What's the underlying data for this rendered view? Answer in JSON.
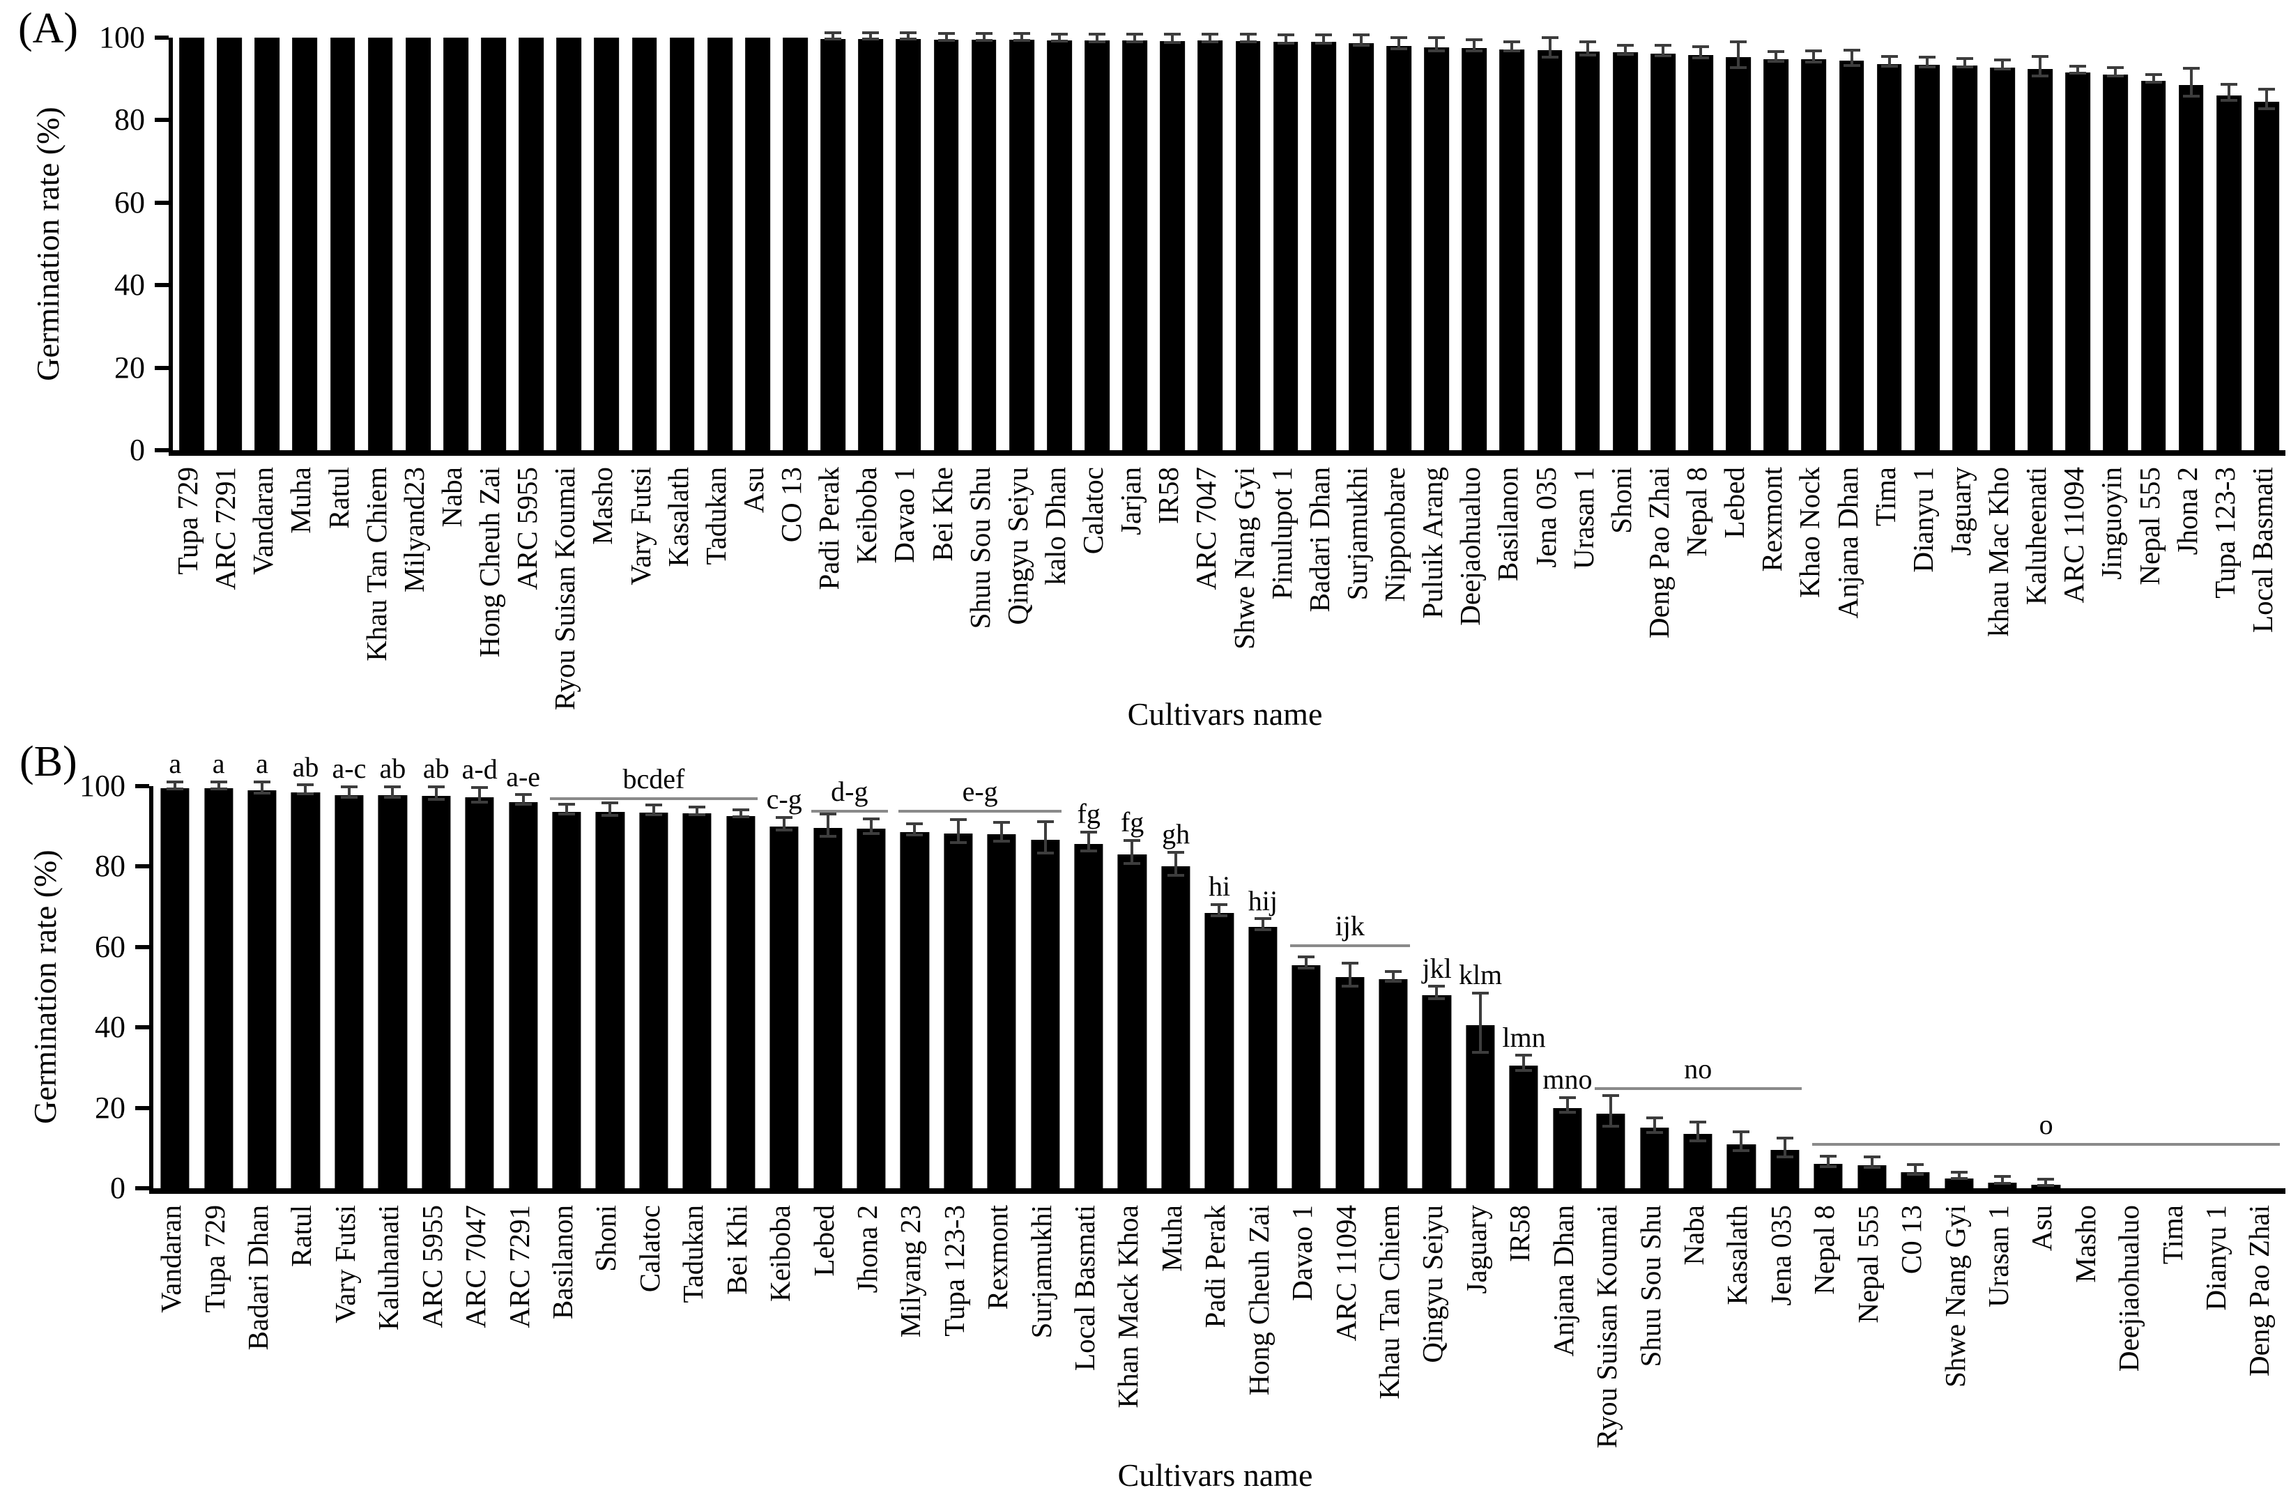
{
  "chart_data": [
    {
      "type": "bar",
      "panel_label": "(A)",
      "ylabel": "Germination rate (%)",
      "xlabel": "Cultivars name",
      "ylim": [
        0,
        100
      ],
      "yticks": [
        0,
        20,
        40,
        60,
        80,
        100
      ],
      "bar_color": "#000000",
      "error_bar_color": "#3d3d3d",
      "grid": "off",
      "categories": [
        "Tupa 729",
        "ARC 7291",
        "Vandaran",
        "Muha",
        "Ratul",
        "Khau Tan Chiem",
        "Milyand23",
        "Naba",
        "Hong Cheuh Zai",
        "ARC 5955",
        "Ryou Suisan Koumai",
        "Masho",
        "Vary Futsi",
        "Kasalath",
        "Tadukan",
        "Asu",
        "CO 13",
        "Padi Perak",
        "Keiboba",
        "Davao 1",
        "Bei Khe",
        "Shuu Sou Shu",
        "Qingyu Seiyu",
        "kalo Dhan",
        "Calatoc",
        "Jarjan",
        "IR58",
        "ARC 7047",
        "Shwe Nang Gyi",
        "Pinulupot 1",
        "Badari Dhan",
        "Surjamukhi",
        "Nipponbare",
        "Puluik Arang",
        "Deejaohualuo",
        "Basilanon",
        "Jena 035",
        "Urasan 1",
        "Shoni",
        "Deng Pao Zhai",
        "Nepal 8",
        "Lebed",
        "Rexmont",
        "Khao Nock",
        "Anjana Dhan",
        "Tima",
        "Dianyu 1",
        "Jaguary",
        "khau Mac Kho",
        "Kaluheenati",
        "ARC 11094",
        "Jinguoyin",
        "Nepal 555",
        "Jhona 2",
        "Tupa 123-3",
        "Local Basmati"
      ],
      "values": [
        100,
        100,
        100,
        100,
        100,
        100,
        100,
        100,
        100,
        100,
        100,
        100,
        100,
        100,
        100,
        100,
        100,
        99.7,
        99.7,
        99.7,
        99.5,
        99.5,
        99.5,
        99.4,
        99.3,
        99.3,
        99.2,
        99.3,
        99.2,
        99,
        99,
        98.7,
        98,
        97.7,
        97.4,
        97.2,
        97,
        96.7,
        96.4,
        96.2,
        95.8,
        95.2,
        94.8,
        94.7,
        94.4,
        93.6,
        93.4,
        93.2,
        92.8,
        92.4,
        91.6,
        91,
        89.5,
        88.5,
        86,
        84.5
      ],
      "errors": [
        0,
        0,
        0,
        0,
        0,
        0,
        0,
        0,
        0,
        0,
        0,
        0,
        0,
        0,
        0,
        0,
        0,
        0.4,
        0.4,
        0.4,
        0.5,
        0.5,
        0.5,
        0.5,
        0.6,
        0.6,
        0.7,
        0.6,
        0.6,
        0.7,
        0.7,
        0.9,
        1.0,
        1.3,
        1.0,
        0.7,
        2.0,
        1.2,
        0.8,
        1.0,
        1.0,
        2.8,
        0.8,
        1.0,
        1.5,
        0.8,
        0.8,
        0.7,
        0.8,
        2.0,
        0.5,
        0.7,
        0.6,
        3.0,
        1.6,
        2.0
      ],
      "annotations": []
    },
    {
      "type": "bar",
      "panel_label": "(B)",
      "ylabel": "Germination rate (%)",
      "xlabel": "Cultivars name",
      "ylim": [
        0,
        100
      ],
      "yticks": [
        0,
        20,
        40,
        60,
        80,
        100
      ],
      "bar_color": "#000000",
      "error_bar_color": "#3d3d3d",
      "grid": "off",
      "categories": [
        "Vandaran",
        "Tupa 729",
        "Badari Dhan",
        "Ratul",
        "Vary Futsi",
        "Kaluhanati",
        "ARC 5955",
        "ARC 7047",
        "ARC 7291",
        "Basilanon",
        "Shoni",
        "Calatoc",
        "Tadukan",
        "Bei Khi",
        "Keiboba",
        "Lebed",
        "Jhona 2",
        "Milyang 23",
        "Tupa 123-3",
        "Rexmont",
        "Surjamukhi",
        "Local Basmati",
        "Khan Mack Khoa",
        "Muha",
        "Padi Perak",
        "Hong Cheuh Zai",
        "Davao 1",
        "ARC 11094",
        "Khau Tan Chiem",
        "Qingyu Seiyu",
        "Jaguary",
        "IR58",
        "Anjana Dhan",
        "Ryou Suisan Koumai",
        "Shuu Sou Shu",
        "Naba",
        "Kasalath",
        "Jena 035",
        "Nepal 8",
        "Nepal 555",
        "C0 13",
        "Shwe Nang Gyi",
        "Urasan 1",
        "Asu",
        "Masho",
        "Deejiaohualuo",
        "Tima",
        "Dianyu 1",
        "Deng Pao Zhai"
      ],
      "values": [
        99.5,
        99.5,
        99,
        98.5,
        97.8,
        97.8,
        97.6,
        97.2,
        96,
        93.6,
        93.6,
        93.4,
        93.2,
        92.6,
        90,
        89.6,
        89.4,
        88.6,
        88.2,
        88,
        86.6,
        85.6,
        83,
        80,
        68.5,
        65,
        55.5,
        52.5,
        52,
        48,
        40.5,
        30.5,
        20,
        18.5,
        15,
        13.5,
        11,
        9.5,
        6,
        5.8,
        4,
        2.5,
        1.4,
        0.8,
        0,
        0,
        0,
        0,
        0
      ],
      "errors": [
        0.5,
        0.5,
        1.0,
        0.8,
        1.0,
        1.0,
        1.2,
        1.5,
        0.8,
        0.8,
        1.2,
        0.8,
        0.6,
        0.5,
        1.2,
        2.5,
        1.5,
        1.0,
        2.5,
        2.0,
        3.5,
        2.0,
        2.5,
        2.5,
        1.0,
        1.0,
        1.0,
        2.5,
        0.8,
        1.2,
        7.0,
        1.5,
        1.5,
        3.5,
        1.5,
        2.0,
        2.0,
        2.0,
        1.0,
        1.0,
        0.8,
        0.5,
        0.5,
        0.4,
        0,
        0,
        0,
        0,
        0
      ],
      "annotations": [
        {
          "label": "a",
          "start": 0,
          "end": 0
        },
        {
          "label": "a",
          "start": 1,
          "end": 1
        },
        {
          "label": "a",
          "start": 2,
          "end": 2
        },
        {
          "label": "ab",
          "start": 3,
          "end": 3
        },
        {
          "label": "a-c",
          "start": 4,
          "end": 4
        },
        {
          "label": "ab",
          "start": 5,
          "end": 5
        },
        {
          "label": "ab",
          "start": 6,
          "end": 6
        },
        {
          "label": "a-d",
          "start": 7,
          "end": 7
        },
        {
          "label": "a-e",
          "start": 8,
          "end": 8
        },
        {
          "label": "bcdef",
          "start": 9,
          "end": 13,
          "y": 96.5
        },
        {
          "label": "c-g",
          "start": 14,
          "end": 14
        },
        {
          "label": "d-g",
          "start": 15,
          "end": 16,
          "y": 93.5
        },
        {
          "label": "e-g",
          "start": 17,
          "end": 20,
          "y": 93.5
        },
        {
          "label": "fg",
          "start": 21,
          "end": 21
        },
        {
          "label": "fg",
          "start": 22,
          "end": 22
        },
        {
          "label": "gh",
          "start": 23,
          "end": 23
        },
        {
          "label": "hi",
          "start": 24,
          "end": 24
        },
        {
          "label": "hij",
          "start": 25,
          "end": 25
        },
        {
          "label": "ijk",
          "start": 26,
          "end": 28,
          "y": 60
        },
        {
          "label": "jkl",
          "start": 29,
          "end": 29
        },
        {
          "label": "klm",
          "start": 30,
          "end": 30
        },
        {
          "label": "lmn",
          "start": 31,
          "end": 31
        },
        {
          "label": "mno",
          "start": 32,
          "end": 32
        },
        {
          "label": "no",
          "start": 33,
          "end": 37,
          "y": 24.5
        },
        {
          "label": "o",
          "start": 38,
          "end": 48,
          "y": 10.5
        }
      ]
    }
  ]
}
